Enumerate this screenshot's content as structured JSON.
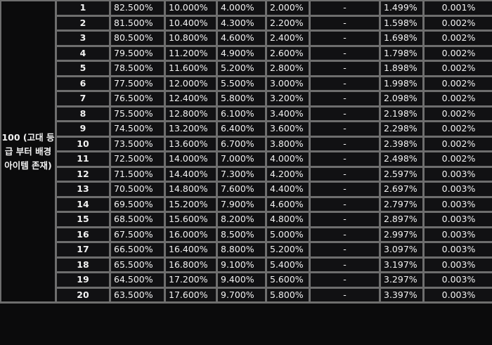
{
  "group_label": "100 (고대 등급 부터 배경 아이템 존재)",
  "rows": [
    [
      "1",
      "82.500%",
      "10.000%",
      "4.000%",
      "2.000%",
      "-",
      "1.499%",
      "0.001%"
    ],
    [
      "2",
      "81.500%",
      "10.400%",
      "4.300%",
      "2.200%",
      "-",
      "1.598%",
      "0.002%"
    ],
    [
      "3",
      "80.500%",
      "10.800%",
      "4.600%",
      "2.400%",
      "-",
      "1.698%",
      "0.002%"
    ],
    [
      "4",
      "79.500%",
      "11.200%",
      "4.900%",
      "2.600%",
      "-",
      "1.798%",
      "0.002%"
    ],
    [
      "5",
      "78.500%",
      "11.600%",
      "5.200%",
      "2.800%",
      "-",
      "1.898%",
      "0.002%"
    ],
    [
      "6",
      "77.500%",
      "12.000%",
      "5.500%",
      "3.000%",
      "-",
      "1.998%",
      "0.002%"
    ],
    [
      "7",
      "76.500%",
      "12.400%",
      "5.800%",
      "3.200%",
      "-",
      "2.098%",
      "0.002%"
    ],
    [
      "8",
      "75.500%",
      "12.800%",
      "6.100%",
      "3.400%",
      "-",
      "2.198%",
      "0.002%"
    ],
    [
      "9",
      "74.500%",
      "13.200%",
      "6.400%",
      "3.600%",
      "-",
      "2.298%",
      "0.002%"
    ],
    [
      "10",
      "73.500%",
      "13.600%",
      "6.700%",
      "3.800%",
      "-",
      "2.398%",
      "0.002%"
    ],
    [
      "11",
      "72.500%",
      "14.000%",
      "7.000%",
      "4.000%",
      "-",
      "2.498%",
      "0.002%"
    ],
    [
      "12",
      "71.500%",
      "14.400%",
      "7.300%",
      "4.200%",
      "-",
      "2.597%",
      "0.003%"
    ],
    [
      "13",
      "70.500%",
      "14.800%",
      "7.600%",
      "4.400%",
      "-",
      "2.697%",
      "0.003%"
    ],
    [
      "14",
      "69.500%",
      "15.200%",
      "7.900%",
      "4.600%",
      "-",
      "2.797%",
      "0.003%"
    ],
    [
      "15",
      "68.500%",
      "15.600%",
      "8.200%",
      "4.800%",
      "-",
      "2.897%",
      "0.003%"
    ],
    [
      "16",
      "67.500%",
      "16.000%",
      "8.500%",
      "5.000%",
      "-",
      "2.997%",
      "0.003%"
    ],
    [
      "17",
      "66.500%",
      "16.400%",
      "8.800%",
      "5.200%",
      "-",
      "3.097%",
      "0.003%"
    ],
    [
      "18",
      "65.500%",
      "16.800%",
      "9.100%",
      "5.400%",
      "-",
      "3.197%",
      "0.003%"
    ],
    [
      "19",
      "64.500%",
      "17.200%",
      "9.400%",
      "5.600%",
      "-",
      "3.297%",
      "0.003%"
    ],
    [
      "20",
      "63.500%",
      "17.600%",
      "9.700%",
      "5.800%",
      "-",
      "3.397%",
      "0.003%"
    ]
  ]
}
